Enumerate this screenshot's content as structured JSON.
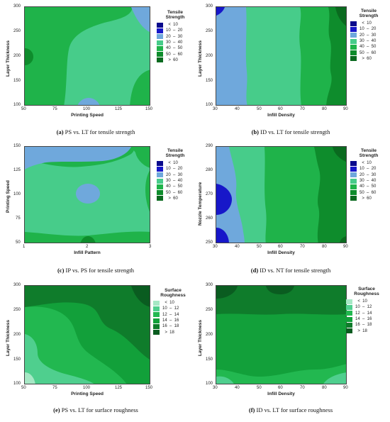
{
  "colors": {
    "tensile": {
      "lt10": "#0a0a8c",
      "b10_20": "#1717c9",
      "b20_30": "#6fa8dc",
      "b30_40": "#47cc8a",
      "b40_50": "#1fb34a",
      "b50_60": "#0e8c2c",
      "gt60": "#0a6a1f"
    },
    "roughness": {
      "lt10": "#a6e8c5",
      "b10_12": "#4fcf8e",
      "b12_14": "#22b850",
      "b14_16": "#12a03a",
      "b16_18": "#0f7c2b",
      "gt18": "#0a5c20"
    }
  },
  "legends": {
    "tensile": {
      "title_line1": "Tensile",
      "title_line2": "Strength",
      "entries": [
        {
          "label": "  <  10",
          "color_key": "lt10"
        },
        {
          "label": "10  –  20",
          "color_key": "b10_20"
        },
        {
          "label": "20  –  30",
          "color_key": "b20_30"
        },
        {
          "label": "30  –  40",
          "color_key": "b30_40"
        },
        {
          "label": "40  –  50",
          "color_key": "b40_50"
        },
        {
          "label": "50  –  60",
          "color_key": "b50_60"
        },
        {
          "label": "  >  60",
          "color_key": "gt60"
        }
      ]
    },
    "roughness": {
      "title_line1": "Surface",
      "title_line2": "Roughness",
      "entries": [
        {
          "label": "  <  10",
          "color_key": "lt10"
        },
        {
          "label": "10  –  12",
          "color_key": "b10_12"
        },
        {
          "label": "12  –  14",
          "color_key": "b12_14"
        },
        {
          "label": "14  –  16",
          "color_key": "b14_16"
        },
        {
          "label": "16  –  18",
          "color_key": "b16_18"
        },
        {
          "label": "  >  18",
          "color_key": "gt18"
        }
      ]
    }
  },
  "chart_data": [
    {
      "type": "heatmap",
      "id": "a",
      "caption_letter": "(a)",
      "caption_text": " PS vs. LT for tensile strength",
      "xlabel": "Printing Speed",
      "ylabel": "Layer Thickness",
      "xticks": [
        "50",
        "75",
        "100",
        "125",
        "150"
      ],
      "yticks": [
        "100",
        "150",
        "200",
        "250",
        "300"
      ],
      "xlim": [
        50,
        150
      ],
      "ylim": [
        100,
        300
      ],
      "legend": "tensile"
    },
    {
      "type": "heatmap",
      "id": "b",
      "caption_letter": "(b)",
      "caption_text": " ID vs. LT for tensile strength",
      "xlabel": "Infill Density",
      "ylabel": "Layer Thickness",
      "xticks": [
        "30",
        "40",
        "50",
        "60",
        "70",
        "80",
        "90"
      ],
      "yticks": [
        "100",
        "150",
        "200",
        "250",
        "300"
      ],
      "xlim": [
        30,
        90
      ],
      "ylim": [
        100,
        300
      ],
      "legend": "tensile"
    },
    {
      "type": "heatmap",
      "id": "c",
      "caption_letter": "(c)",
      "caption_text": " IP vs. PS for tensile strength",
      "xlabel": "Infill Pattern",
      "ylabel": "Printing Speed",
      "xticks": [
        "1",
        "2",
        "3"
      ],
      "yticks": [
        "50",
        "75",
        "100",
        "125",
        "150"
      ],
      "xlim": [
        1,
        3
      ],
      "ylim": [
        50,
        150
      ],
      "legend": "tensile"
    },
    {
      "type": "heatmap",
      "id": "d",
      "caption_letter": "(d)",
      "caption_text": " ID vs. NT for tensile strength",
      "xlabel": "Infill Density",
      "ylabel": "Nozzle Temperature",
      "xticks": [
        "30",
        "40",
        "50",
        "60",
        "70",
        "80",
        "90"
      ],
      "yticks": [
        "250",
        "260",
        "270",
        "280",
        "290"
      ],
      "xlim": [
        30,
        90
      ],
      "ylim": [
        250,
        290
      ],
      "legend": "tensile"
    },
    {
      "type": "heatmap",
      "id": "e",
      "caption_letter": "(e)",
      "caption_text": " PS vs. LT for surface roughness",
      "xlabel": "Printing Speed",
      "ylabel": "Layer Thickness",
      "xticks": [
        "50",
        "75",
        "100",
        "125",
        "150"
      ],
      "yticks": [
        "100",
        "150",
        "200",
        "250",
        "300"
      ],
      "xlim": [
        50,
        150
      ],
      "ylim": [
        100,
        300
      ],
      "legend": "roughness"
    },
    {
      "type": "heatmap",
      "id": "f",
      "caption_letter": "(f)",
      "caption_text": " ID vs. LT for surface roughness",
      "xlabel": "Infill Density",
      "ylabel": "Layer Thickness",
      "xticks": [
        "30",
        "40",
        "50",
        "60",
        "70",
        "80",
        "90"
      ],
      "yticks": [
        "100",
        "150",
        "200",
        "250",
        "300"
      ],
      "xlim": [
        30,
        90
      ],
      "ylim": [
        100,
        300
      ],
      "legend": "roughness"
    }
  ]
}
